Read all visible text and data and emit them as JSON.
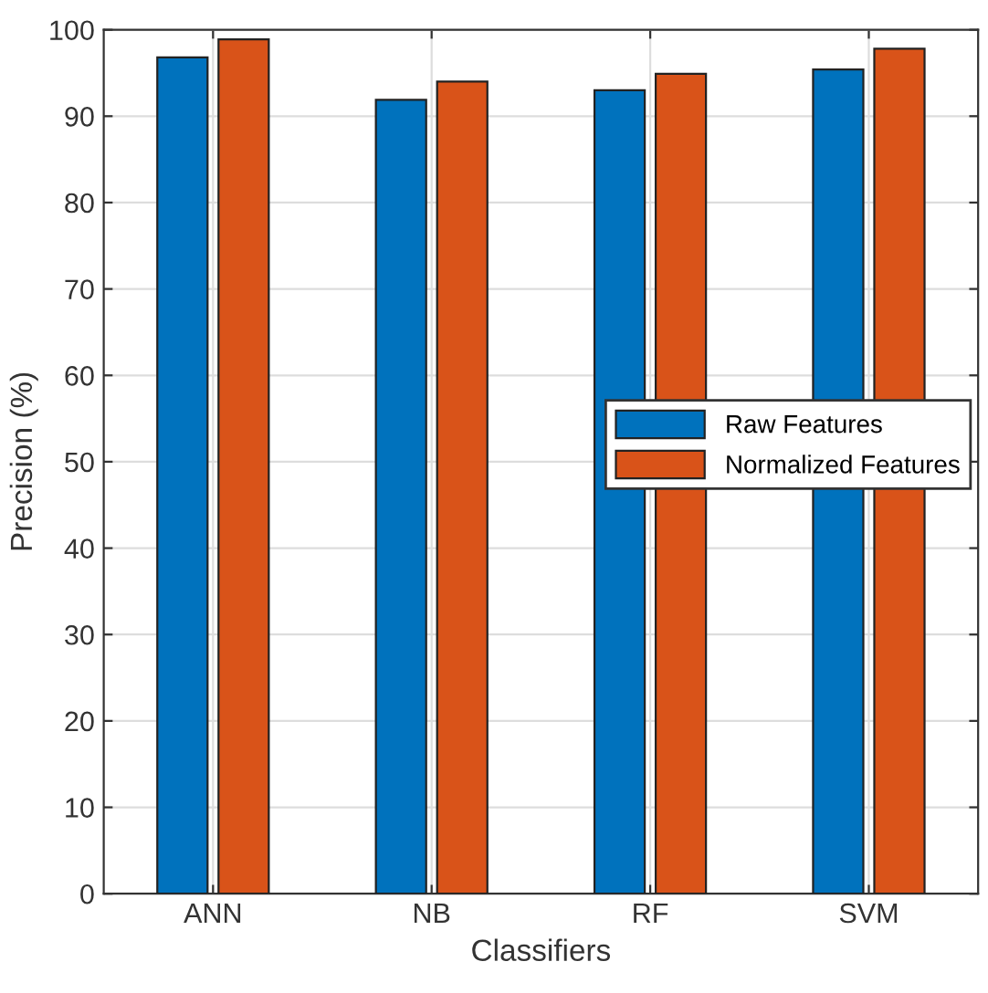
{
  "chart_data": {
    "type": "bar",
    "xlabel": "Classifiers",
    "ylabel": "Precision (%)",
    "categories": [
      "ANN",
      "NB",
      "RF",
      "SVM"
    ],
    "series": [
      {
        "name": "Raw Features",
        "color": "#0072bd",
        "values": [
          96.8,
          91.9,
          93.0,
          95.4
        ]
      },
      {
        "name": "Normalized Features",
        "color": "#d95319",
        "values": [
          98.9,
          94.0,
          94.9,
          97.8
        ]
      }
    ],
    "ylim": [
      0,
      100
    ],
    "yticks": [
      0,
      10,
      20,
      30,
      40,
      50,
      60,
      70,
      80,
      90,
      100
    ],
    "grid": true,
    "legend": "right"
  }
}
